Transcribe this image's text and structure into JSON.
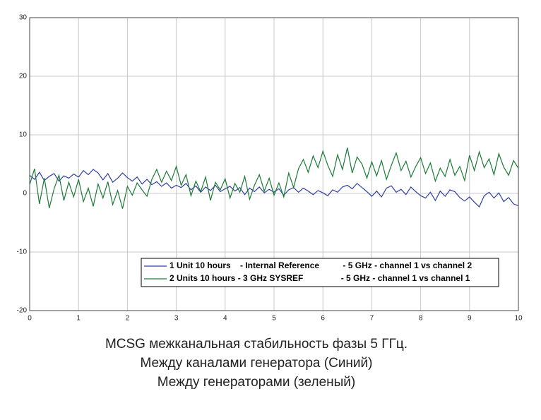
{
  "chart_data": {
    "type": "line",
    "caption": [
      "MCSG межканальная стабильность фазы 5 ГГц.",
      "Между каналами генератора (Синий)",
      "Между генераторами (зеленый)"
    ],
    "x": [
      0,
      0.1,
      0.2,
      0.3,
      0.4,
      0.5,
      0.6,
      0.7,
      0.8,
      0.9,
      1,
      1.1,
      1.2,
      1.3,
      1.4,
      1.5,
      1.6,
      1.7,
      1.8,
      1.9,
      2,
      2.1,
      2.2,
      2.3,
      2.4,
      2.5,
      2.6,
      2.7,
      2.8,
      2.9,
      3,
      3.1,
      3.2,
      3.3,
      3.4,
      3.5,
      3.6,
      3.7,
      3.8,
      3.9,
      4,
      4.1,
      4.2,
      4.3,
      4.4,
      4.5,
      4.6,
      4.7,
      4.8,
      4.9,
      5,
      5.1,
      5.2,
      5.3,
      5.4,
      5.5,
      5.6,
      5.7,
      5.8,
      5.9,
      6,
      6.1,
      6.2,
      6.3,
      6.4,
      6.5,
      6.6,
      6.7,
      6.8,
      6.9,
      7,
      7.1,
      7.2,
      7.3,
      7.4,
      7.5,
      7.6,
      7.7,
      7.8,
      7.9,
      8,
      8.1,
      8.2,
      8.3,
      8.4,
      8.5,
      8.6,
      8.7,
      8.8,
      8.9,
      9,
      9.1,
      9.2,
      9.3,
      9.4,
      9.5,
      9.6,
      9.7,
      9.8,
      9.9,
      10
    ],
    "series": [
      {
        "name": "1 Unit 10 hours    - Internal Reference          - 5 GHz - channel 1 vs channel 2",
        "color": "#2f3fa0",
        "values": [
          3.1,
          2.4,
          3.6,
          2.2,
          2.9,
          3.4,
          2.1,
          3.0,
          2.6,
          3.3,
          2.8,
          3.9,
          3.2,
          4.1,
          3.5,
          2.3,
          3.4,
          1.9,
          2.6,
          3.5,
          2.7,
          2.1,
          2.8,
          1.6,
          2.4,
          1.5,
          2.0,
          1.2,
          1.8,
          0.9,
          1.4,
          1.0,
          1.7,
          0.6,
          1.3,
          0.2,
          1.1,
          0.5,
          1.4,
          0.3,
          0.8,
          1.2,
          0.4,
          1.0,
          -0.2,
          0.9,
          0.3,
          1.1,
          0.1,
          0.7,
          0.2,
          0.8,
          -0.3,
          0.6,
          1.0,
          0.2,
          0.9,
          0.4,
          -0.2,
          0.5,
          0.1,
          -0.4,
          0.6,
          0.2,
          1.1,
          1.4,
          0.8,
          1.7,
          1.0,
          0.3,
          -0.5,
          0.4,
          -0.6,
          0.9,
          1.3,
          0.2,
          0.7,
          -0.2,
          1.1,
          0.3,
          -0.4,
          -0.8,
          0.2,
          -1.2,
          0.4,
          -0.5,
          0.6,
          0.3,
          -0.7,
          -1.3,
          -0.6,
          -1.5,
          -2.3,
          -0.4,
          0.2,
          -0.8,
          0.1,
          -1.4,
          -0.7,
          -1.8,
          -2.1
        ]
      },
      {
        "name": "2 Units 10 hours - 3 GHz SYSREF                - 5 GHz - channel 1 vs channel 1",
        "color": "#1c7a36",
        "values": [
          1.5,
          4.2,
          -1.8,
          2.6,
          -2.5,
          0.8,
          3.1,
          -1.2,
          1.9,
          -0.6,
          2.4,
          -1.4,
          0.9,
          -2.2,
          1.6,
          -0.8,
          2.0,
          -1.9,
          0.5,
          -2.6,
          1.2,
          -0.3,
          1.8,
          0.6,
          -0.5,
          2.4,
          4.1,
          1.9,
          3.8,
          2.2,
          4.6,
          1.4,
          3.2,
          -0.4,
          2.1,
          0.3,
          2.8,
          -1.2,
          1.9,
          0.6,
          2.5,
          -0.8,
          1.7,
          0.2,
          2.9,
          -1.0,
          1.4,
          3.2,
          0.4,
          2.6,
          -0.3,
          1.8,
          -0.6,
          3.5,
          1.0,
          4.2,
          5.8,
          3.6,
          6.4,
          4.4,
          7.2,
          4.8,
          2.9,
          6.6,
          4.1,
          7.8,
          3.5,
          6.2,
          5.0,
          2.6,
          5.4,
          3.0,
          5.6,
          2.4,
          4.8,
          6.9,
          3.9,
          5.5,
          2.8,
          4.6,
          6.1,
          3.4,
          5.2,
          2.1,
          4.3,
          2.9,
          5.8,
          3.1,
          4.6,
          2.2,
          6.5,
          3.9,
          7.1,
          4.4,
          5.9,
          3.2,
          6.8,
          4.5,
          3.1,
          5.6,
          4.3
        ]
      }
    ],
    "xlim": [
      0,
      10
    ],
    "xticks": [
      0,
      1,
      2,
      3,
      4,
      5,
      6,
      7,
      8,
      9,
      10
    ],
    "ylim": [
      -20,
      30
    ],
    "yticks": [
      -20,
      -10,
      0,
      10,
      20,
      30
    ],
    "grid": true
  }
}
